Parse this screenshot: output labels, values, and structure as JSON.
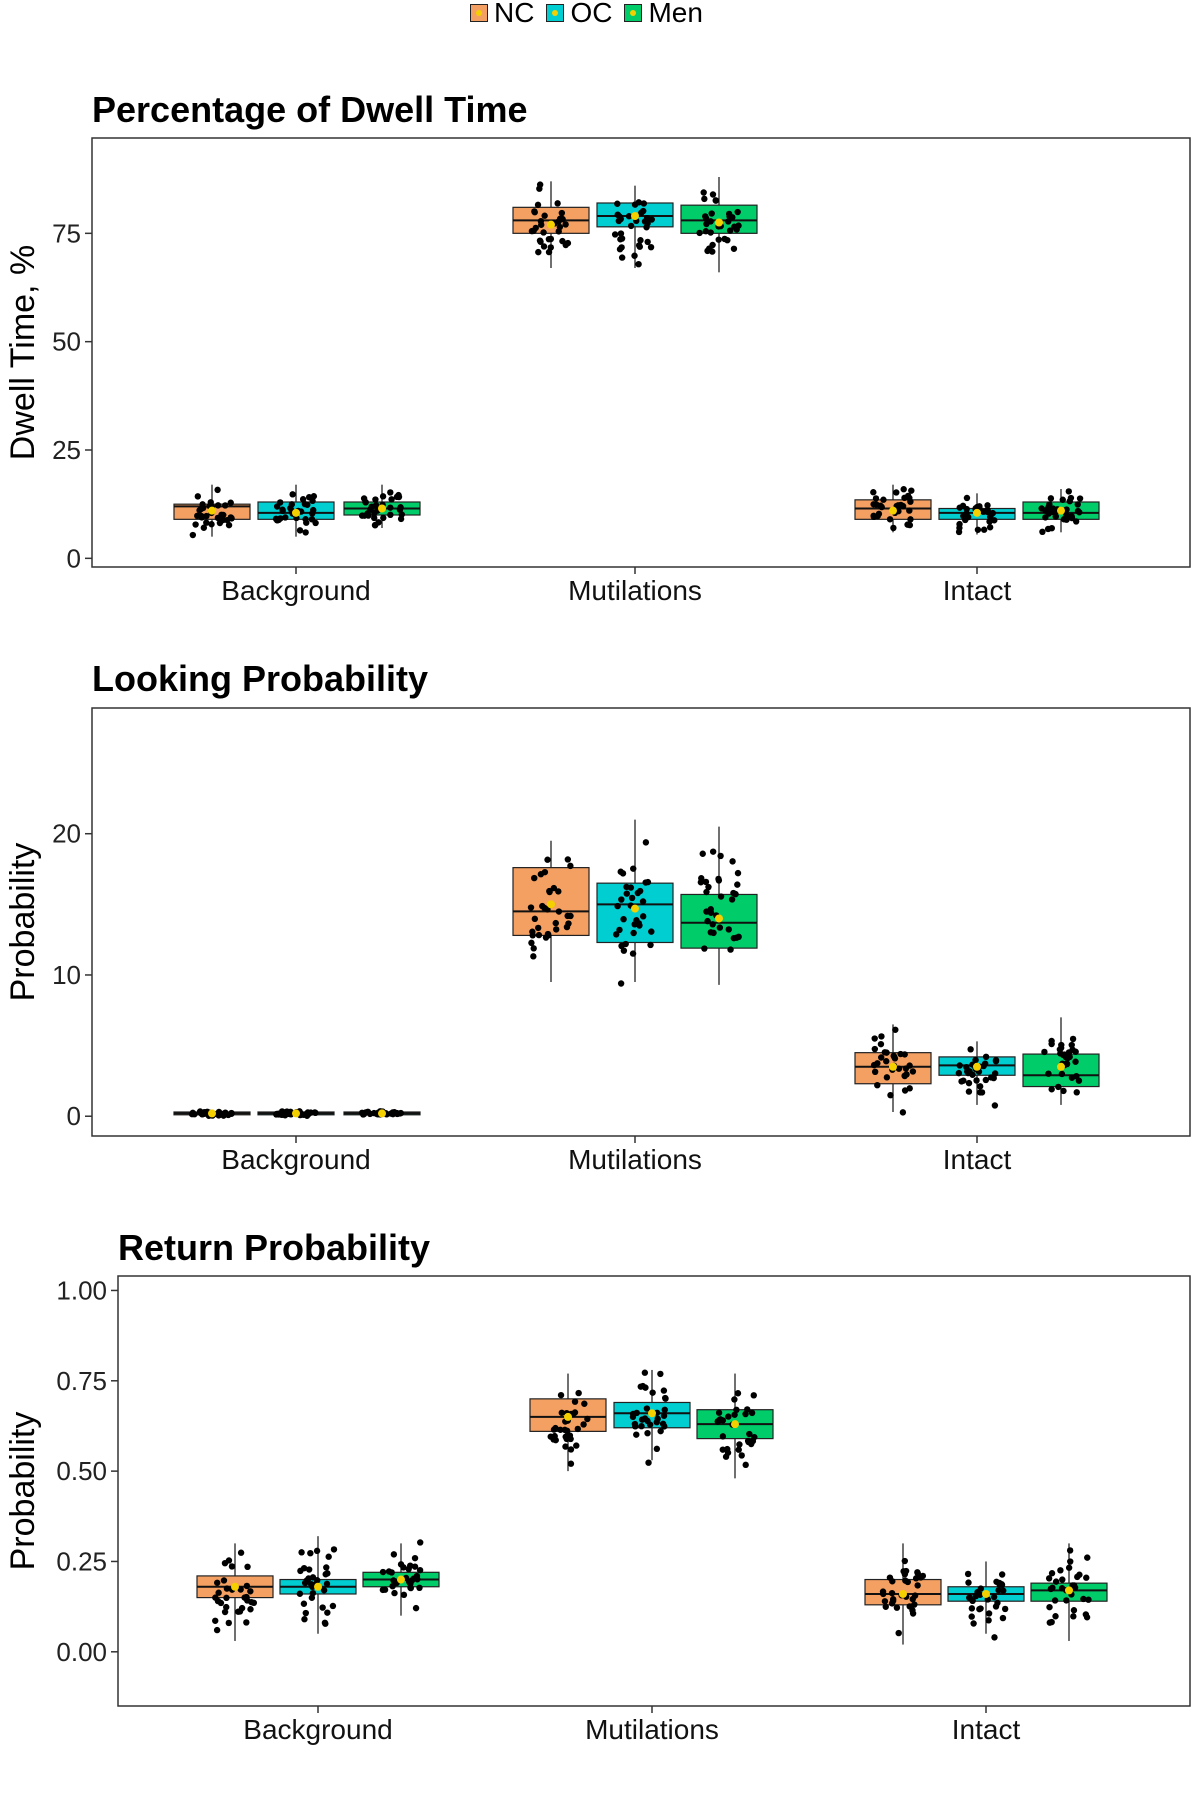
{
  "legend": {
    "items": [
      {
        "label": "NC",
        "color": "#f4a062"
      },
      {
        "label": "OC",
        "color": "#00ced1"
      },
      {
        "label": "Men",
        "color": "#00cc6a"
      }
    ]
  },
  "chart_data": [
    {
      "type": "box",
      "title": "Percentage of Dwell Time",
      "xlabel": "",
      "ylabel": "Dwell Time, %",
      "ylim": [
        -2,
        97
      ],
      "yticks": [
        0,
        25,
        50,
        75
      ],
      "ytick_labels": [
        "0",
        "25",
        "50",
        "75"
      ],
      "categories": [
        "Background",
        "Mutilations",
        "Intact"
      ],
      "series": [
        {
          "name": "NC",
          "color": "#f4a062",
          "boxes": [
            {
              "q1": 9,
              "median": 12,
              "q3": 12.5,
              "lo": 5,
              "hi": 17,
              "mean": 11
            },
            {
              "q1": 75,
              "median": 78,
              "q3": 81,
              "lo": 67,
              "hi": 87,
              "mean": 77
            },
            {
              "q1": 9,
              "median": 11.5,
              "q3": 13.5,
              "lo": 6,
              "hi": 17,
              "mean": 11
            }
          ]
        },
        {
          "name": "OC",
          "color": "#00ced1",
          "boxes": [
            {
              "q1": 9,
              "median": 10.5,
              "q3": 13,
              "lo": 5,
              "hi": 17,
              "mean": 10.5
            },
            {
              "q1": 76.5,
              "median": 79,
              "q3": 82,
              "lo": 67,
              "hi": 86,
              "mean": 79
            },
            {
              "q1": 9,
              "median": 10.5,
              "q3": 11.5,
              "lo": 5.5,
              "hi": 15,
              "mean": 10.5
            }
          ]
        },
        {
          "name": "Men",
          "color": "#00cc6a",
          "boxes": [
            {
              "q1": 10,
              "median": 11.5,
              "q3": 13,
              "lo": 7,
              "hi": 17,
              "mean": 11.5
            },
            {
              "q1": 75,
              "median": 78,
              "q3": 81.5,
              "lo": 66,
              "hi": 88,
              "mean": 77.5
            },
            {
              "q1": 9,
              "median": 10.5,
              "q3": 13,
              "lo": 6,
              "hi": 16,
              "mean": 11
            }
          ]
        }
      ]
    },
    {
      "type": "box",
      "title": "Looking Probability",
      "xlabel": "",
      "ylabel": "Probability",
      "ylim": [
        -1.4,
        28.9
      ],
      "yticks": [
        0,
        10,
        20
      ],
      "ytick_labels": [
        "0",
        "10",
        "20"
      ],
      "categories": [
        "Background",
        "Mutilations",
        "Intact"
      ],
      "series": [
        {
          "name": "NC",
          "color": "#f4a062",
          "boxes": [
            {
              "q1": 0.1,
              "median": 0.2,
              "q3": 0.3,
              "lo": 0,
              "hi": 0.4,
              "mean": 0.2
            },
            {
              "q1": 12.8,
              "median": 14.5,
              "q3": 17.6,
              "lo": 9.5,
              "hi": 19.5,
              "mean": 15
            },
            {
              "q1": 2.3,
              "median": 3.5,
              "q3": 4.5,
              "lo": 0.3,
              "hi": 6.5,
              "mean": 3.5
            }
          ]
        },
        {
          "name": "OC",
          "color": "#00ced1",
          "boxes": [
            {
              "q1": 0.1,
              "median": 0.2,
              "q3": 0.3,
              "lo": 0,
              "hi": 0.4,
              "mean": 0.2
            },
            {
              "q1": 12.3,
              "median": 15,
              "q3": 16.5,
              "lo": 9.5,
              "hi": 21,
              "mean": 14.7
            },
            {
              "q1": 2.9,
              "median": 3.6,
              "q3": 4.2,
              "lo": 0.8,
              "hi": 5.3,
              "mean": 3.5
            }
          ]
        },
        {
          "name": "Men",
          "color": "#00cc6a",
          "boxes": [
            {
              "q1": 0.1,
              "median": 0.2,
              "q3": 0.3,
              "lo": 0,
              "hi": 0.4,
              "mean": 0.2
            },
            {
              "q1": 11.9,
              "median": 13.7,
              "q3": 15.7,
              "lo": 9.3,
              "hi": 20.5,
              "mean": 14
            },
            {
              "q1": 2.1,
              "median": 2.9,
              "q3": 4.4,
              "lo": 0.8,
              "hi": 7,
              "mean": 3.5
            }
          ]
        }
      ]
    },
    {
      "type": "box",
      "title": "Return Probability",
      "xlabel": "",
      "ylabel": "Probability",
      "ylim": [
        -0.15,
        1.04
      ],
      "yticks": [
        0,
        0.25,
        0.5,
        0.75,
        1.0
      ],
      "ytick_labels": [
        "0.00",
        "0.25",
        "0.50",
        "0.75",
        "1.00"
      ],
      "categories": [
        "Background",
        "Mutilations",
        "Intact"
      ],
      "series": [
        {
          "name": "NC",
          "color": "#f4a062",
          "boxes": [
            {
              "q1": 0.15,
              "median": 0.18,
              "q3": 0.21,
              "lo": 0.03,
              "hi": 0.3,
              "mean": 0.18
            },
            {
              "q1": 0.61,
              "median": 0.65,
              "q3": 0.7,
              "lo": 0.5,
              "hi": 0.77,
              "mean": 0.65
            },
            {
              "q1": 0.13,
              "median": 0.16,
              "q3": 0.2,
              "lo": 0.02,
              "hi": 0.3,
              "mean": 0.16
            }
          ]
        },
        {
          "name": "OC",
          "color": "#00ced1",
          "boxes": [
            {
              "q1": 0.16,
              "median": 0.18,
              "q3": 0.2,
              "lo": 0.05,
              "hi": 0.32,
              "mean": 0.18
            },
            {
              "q1": 0.62,
              "median": 0.66,
              "q3": 0.69,
              "lo": 0.53,
              "hi": 0.78,
              "mean": 0.66
            },
            {
              "q1": 0.14,
              "median": 0.16,
              "q3": 0.18,
              "lo": 0.05,
              "hi": 0.25,
              "mean": 0.16
            }
          ]
        },
        {
          "name": "Men",
          "color": "#00cc6a",
          "boxes": [
            {
              "q1": 0.18,
              "median": 0.2,
              "q3": 0.22,
              "lo": 0.1,
              "hi": 0.3,
              "mean": 0.2
            },
            {
              "q1": 0.59,
              "median": 0.63,
              "q3": 0.67,
              "lo": 0.48,
              "hi": 0.77,
              "mean": 0.63
            },
            {
              "q1": 0.14,
              "median": 0.17,
              "q3": 0.19,
              "lo": 0.03,
              "hi": 0.3,
              "mean": 0.17
            }
          ]
        }
      ]
    }
  ]
}
